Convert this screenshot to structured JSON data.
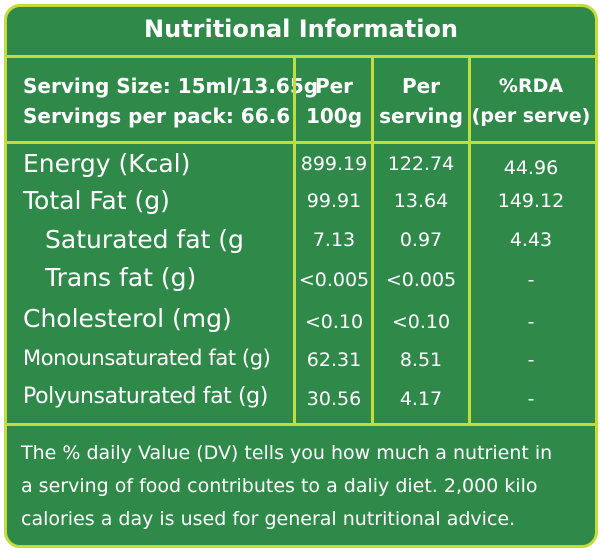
{
  "title": "Nutritional Information",
  "header": {
    "serving_size": "Serving Size: 15ml/13.65g",
    "servings_per_pack": "Servings per pack: 66.6",
    "col1_line1": "Per",
    "col1_line2": "100g",
    "col2_line1": "Per",
    "col2_line2": "serving",
    "col3_line1": "%RDA",
    "col3_line2": "(per serve)"
  },
  "rows": [
    {
      "label": "Energy (Kcal)",
      "per100": "899.19",
      "perServing": "122.74",
      "rda": "44.96"
    },
    {
      "label": "Total Fat (g)",
      "per100": "99.91",
      "perServing": "13.64",
      "rda": "149.12"
    },
    {
      "label": "Saturated fat (g",
      "per100": "7.13",
      "perServing": "0.97",
      "rda": "4.43"
    },
    {
      "label": "Trans fat (g)",
      "per100": "<0.005",
      "perServing": "<0.005",
      "rda": "-"
    },
    {
      "label": "Cholesterol (mg)",
      "per100": "<0.10",
      "perServing": "<0.10",
      "rda": "-"
    },
    {
      "label": "Monounsaturated fat (g)",
      "per100": "62.31",
      "perServing": "8.51",
      "rda": "-"
    },
    {
      "label": "Polyunsaturated fat (g)",
      "per100": "30.56",
      "perServing": "4.17",
      "rda": "-"
    }
  ],
  "footer": {
    "line1": "The % daily Value (DV) tells you how much a nutrient in",
    "line2": "a serving of food contributes to a daliy diet. 2,000 kilo",
    "line3": "calories a day is used for general nutritional advice."
  },
  "colors": {
    "background": "#2f8a4a",
    "border": "#c4dc3a",
    "text": "#ffffff"
  }
}
